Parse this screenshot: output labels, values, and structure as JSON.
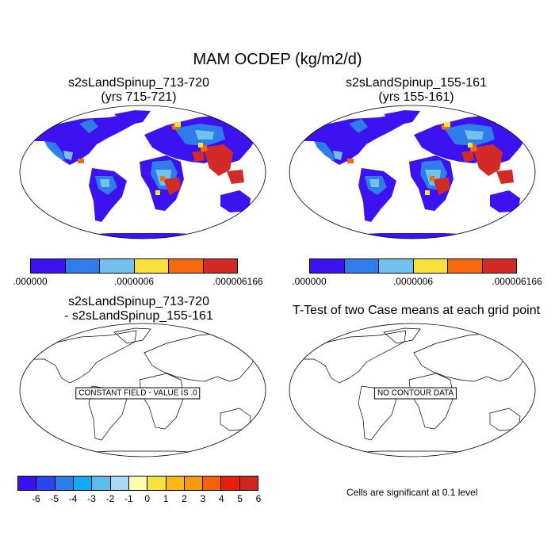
{
  "title": "MAM OCDEP (kg/m2/d)",
  "panels": {
    "top_left": {
      "title_line1": "s2sLandSpinup_713-720",
      "title_line2": "(yrs 715-721)"
    },
    "top_right": {
      "title_line1": "s2sLandSpinup_155-161",
      "title_line2": "(yrs 155-161)"
    },
    "bottom_left": {
      "title_line1": "s2sLandSpinup_713-720",
      "title_line2": "- s2sLandSpinup_155-161",
      "box_label": "CONSTANT FIELD - VALUE IS .0"
    },
    "bottom_right": {
      "title_line1": "T-Test of two Case means at each grid point",
      "box_label": "NO CONTOUR DATA"
    }
  },
  "colorbar_top": {
    "colors": [
      "#3d12f0",
      "#2f7de8",
      "#71c1ec",
      "#f8e13a",
      "#f36a0e",
      "#d22b27"
    ],
    "labels": [
      ".000000",
      ".0000006",
      ".000006166"
    ]
  },
  "colorbar_bottom": {
    "colors": [
      "#3a12f2",
      "#2a46ee",
      "#2f7de8",
      "#12a9f5",
      "#5dbde9",
      "#a8d8f5",
      "#ffffb3",
      "#f8e13a",
      "#f8b81a",
      "#f59a0e",
      "#f3620a",
      "#e71e0a",
      "#d2241f"
    ],
    "labels": [
      "-6",
      "-5",
      "-4",
      "-3",
      "-2",
      "-1",
      "0",
      "1",
      "2",
      "3",
      "4",
      "5",
      "6"
    ]
  },
  "significance_note": "Cells are significant at 0.1 level"
}
